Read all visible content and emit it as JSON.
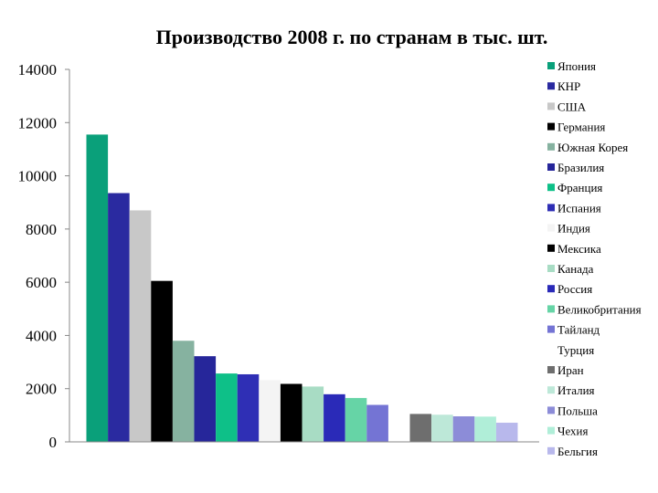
{
  "chart_data": {
    "type": "bar",
    "title": "Производство 2008 г. по странам в тыс. шт.",
    "xlabel": "",
    "ylabel": "",
    "ylim": [
      0,
      14000
    ],
    "yticks": [
      0,
      2000,
      4000,
      6000,
      8000,
      10000,
      12000,
      14000
    ],
    "grid": false,
    "legend_position": "right",
    "series": [
      {
        "name": "Япония",
        "value": 11550,
        "color": "#0aa07a"
      },
      {
        "name": "КНР",
        "value": 9350,
        "color": "#2a2aa0"
      },
      {
        "name": "США",
        "value": 8700,
        "color": "#c8c8c8"
      },
      {
        "name": "Германия",
        "value": 6050,
        "color": "#000000"
      },
      {
        "name": "Южная Корея",
        "value": 3800,
        "color": "#86b2a0"
      },
      {
        "name": "Бразилия",
        "value": 3220,
        "color": "#26269a"
      },
      {
        "name": "Франция",
        "value": 2570,
        "color": "#0ec088"
      },
      {
        "name": "Испания",
        "value": 2540,
        "color": "#2f2fb5"
      },
      {
        "name": "Индия",
        "value": 2320,
        "color": "#f4f4f4"
      },
      {
        "name": "Мексика",
        "value": 2180,
        "color": "#000000"
      },
      {
        "name": "Канада",
        "value": 2080,
        "color": "#a8dcc4"
      },
      {
        "name": "Россия",
        "value": 1790,
        "color": "#2a2ab8"
      },
      {
        "name": "Великобритания",
        "value": 1650,
        "color": "#66d4a6"
      },
      {
        "name": "Тайланд",
        "value": 1390,
        "color": "#7474d4"
      },
      {
        "name": "Турция",
        "value": 0,
        "color": "#ffffff"
      },
      {
        "name": "Иран",
        "value": 1050,
        "color": "#6e6e6e"
      },
      {
        "name": "Италия",
        "value": 1020,
        "color": "#bde8d8"
      },
      {
        "name": "Польша",
        "value": 960,
        "color": "#8c8cd8"
      },
      {
        "name": "Чехия",
        "value": 950,
        "color": "#b0eed8"
      },
      {
        "name": "Бельгия",
        "value": 720,
        "color": "#b8b8ec"
      }
    ]
  }
}
